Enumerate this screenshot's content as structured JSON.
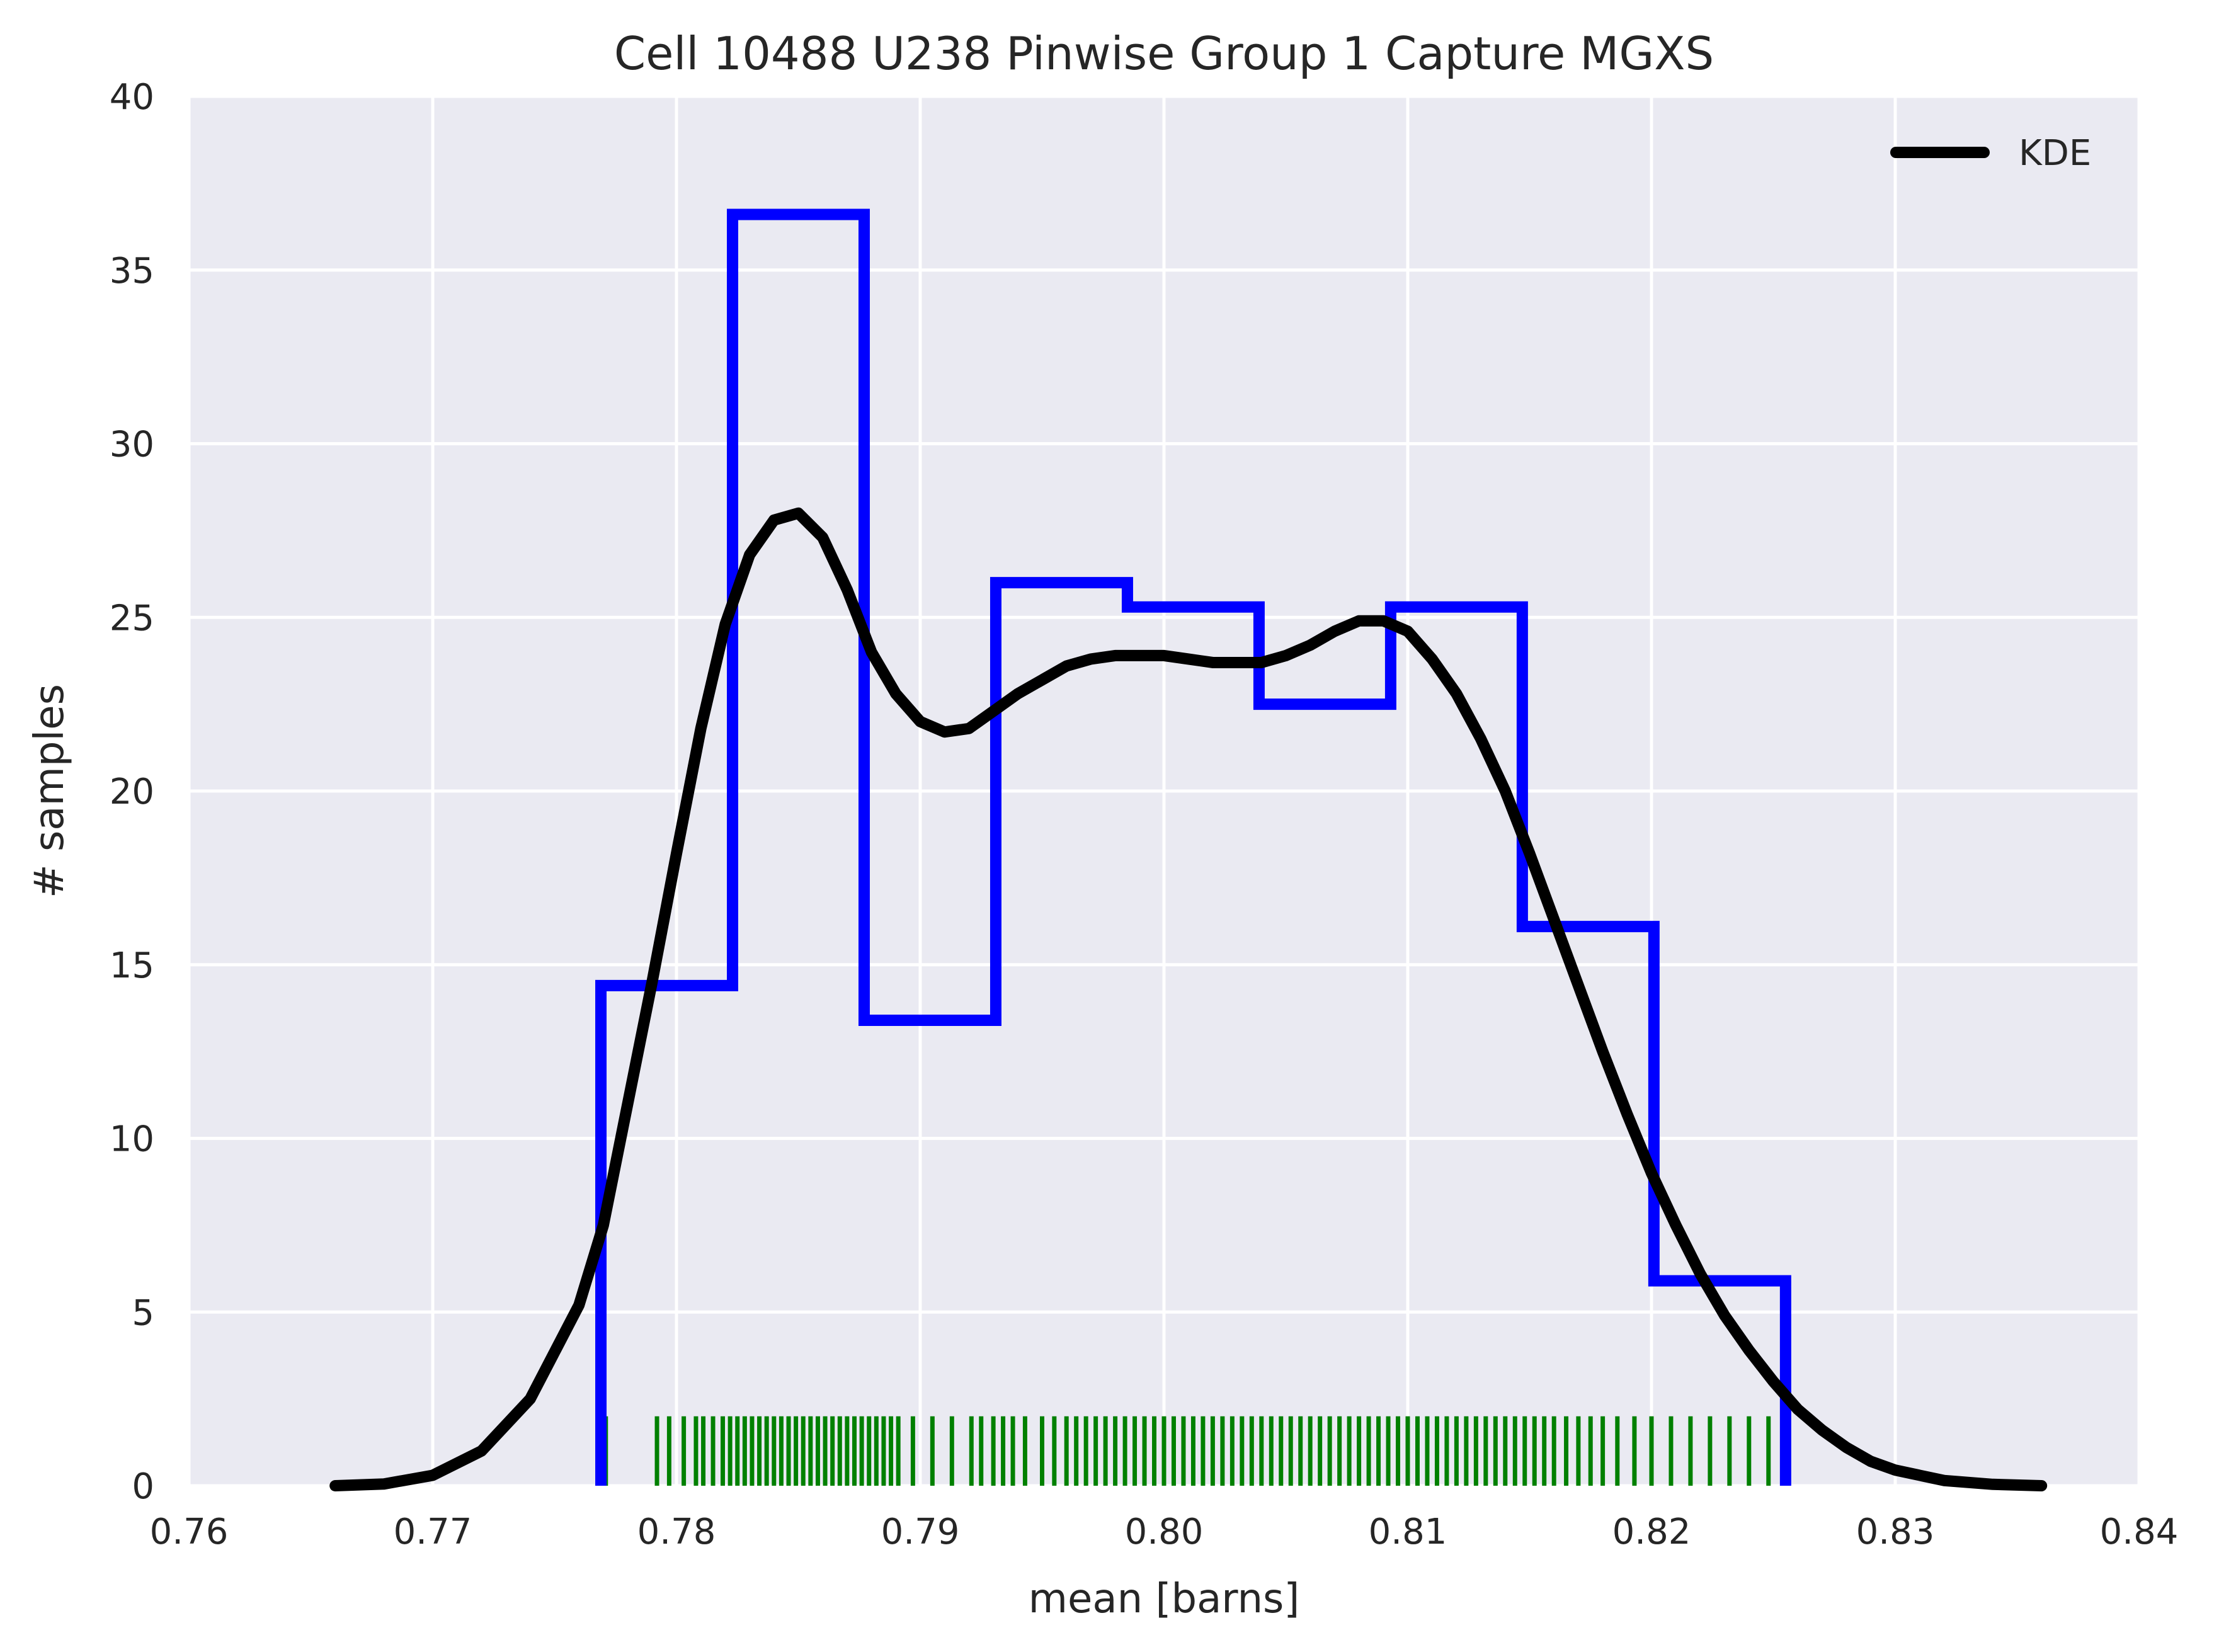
{
  "chart_data": {
    "type": "histogram",
    "title": "Cell 10488 U238 Pinwise Group 1 Capture MGXS",
    "xlabel": "mean [barns]",
    "ylabel": "# samples",
    "xlim": [
      0.76,
      0.84
    ],
    "ylim": [
      0,
      40
    ],
    "xticks": [
      "0.76",
      "0.77",
      "0.78",
      "0.79",
      "0.80",
      "0.81",
      "0.82",
      "0.83",
      "0.84"
    ],
    "yticks": [
      "0",
      "5",
      "10",
      "15",
      "20",
      "25",
      "30",
      "35",
      "40"
    ],
    "grid": true,
    "legend": {
      "position": "top-right",
      "entries": [
        "KDE"
      ]
    },
    "colors": {
      "background": "#eaeaf2",
      "grid": "#ffffff",
      "histogram": "#0000ff",
      "kde": "#000000",
      "rug": "#008000"
    },
    "histogram": {
      "bin_edges": [
        0.7769,
        0.7823,
        0.7877,
        0.7931,
        0.7985,
        0.8039,
        0.8093,
        0.8147,
        0.8201,
        0.8255
      ],
      "counts": [
        14.4,
        36.6,
        13.4,
        26.0,
        25.3,
        22.5,
        25.3,
        16.1,
        5.9
      ]
    },
    "kde": {
      "name": "KDE",
      "x": [
        0.766,
        0.768,
        0.77,
        0.772,
        0.774,
        0.776,
        0.777,
        0.778,
        0.779,
        0.78,
        0.781,
        0.782,
        0.783,
        0.784,
        0.785,
        0.786,
        0.787,
        0.788,
        0.789,
        0.79,
        0.791,
        0.792,
        0.793,
        0.794,
        0.795,
        0.796,
        0.797,
        0.798,
        0.799,
        0.8,
        0.801,
        0.802,
        0.803,
        0.804,
        0.805,
        0.806,
        0.807,
        0.808,
        0.809,
        0.81,
        0.811,
        0.812,
        0.813,
        0.814,
        0.815,
        0.816,
        0.817,
        0.818,
        0.819,
        0.82,
        0.821,
        0.822,
        0.823,
        0.824,
        0.825,
        0.826,
        0.827,
        0.828,
        0.829,
        0.83,
        0.832,
        0.834,
        0.836
      ],
      "y": [
        0.0,
        0.05,
        0.3,
        1.0,
        2.5,
        5.2,
        7.5,
        11.0,
        14.5,
        18.2,
        21.8,
        24.8,
        26.8,
        27.8,
        28.0,
        27.3,
        25.8,
        24.0,
        22.8,
        22.0,
        21.7,
        21.8,
        22.3,
        22.8,
        23.2,
        23.6,
        23.8,
        23.9,
        23.9,
        23.9,
        23.8,
        23.7,
        23.7,
        23.7,
        23.9,
        24.2,
        24.6,
        24.9,
        24.9,
        24.6,
        23.8,
        22.8,
        21.5,
        20.0,
        18.2,
        16.3,
        14.4,
        12.5,
        10.7,
        9.0,
        7.5,
        6.1,
        4.9,
        3.9,
        3.0,
        2.2,
        1.6,
        1.1,
        0.7,
        0.45,
        0.15,
        0.04,
        0.0
      ]
    },
    "rug": {
      "height": 2,
      "x": [
        0.7771,
        0.7792,
        0.7797,
        0.7803,
        0.7808,
        0.7811,
        0.7815,
        0.7819,
        0.7822,
        0.7825,
        0.7828,
        0.7831,
        0.7834,
        0.7837,
        0.784,
        0.7843,
        0.7846,
        0.7849,
        0.7852,
        0.7855,
        0.7858,
        0.7861,
        0.7864,
        0.7867,
        0.787,
        0.7873,
        0.7876,
        0.7879,
        0.7882,
        0.7885,
        0.7888,
        0.7891,
        0.7897,
        0.7905,
        0.7913,
        0.7921,
        0.7925,
        0.793,
        0.7934,
        0.7938,
        0.7943,
        0.795,
        0.7955,
        0.796,
        0.7964,
        0.7968,
        0.7972,
        0.7976,
        0.798,
        0.7984,
        0.7988,
        0.7992,
        0.7996,
        0.8,
        0.8004,
        0.8008,
        0.8012,
        0.8016,
        0.802,
        0.8024,
        0.8028,
        0.8032,
        0.8036,
        0.804,
        0.8044,
        0.8048,
        0.8052,
        0.8056,
        0.806,
        0.8064,
        0.8068,
        0.8072,
        0.8076,
        0.808,
        0.8084,
        0.8088,
        0.8092,
        0.8096,
        0.81,
        0.8104,
        0.8108,
        0.8112,
        0.8116,
        0.812,
        0.8124,
        0.8128,
        0.8132,
        0.8136,
        0.814,
        0.8144,
        0.8148,
        0.8152,
        0.8156,
        0.816,
        0.8165,
        0.817,
        0.8175,
        0.818,
        0.8186,
        0.8193,
        0.82,
        0.8208,
        0.8216,
        0.8224,
        0.8232,
        0.824,
        0.8248,
        0.8254
      ]
    }
  }
}
